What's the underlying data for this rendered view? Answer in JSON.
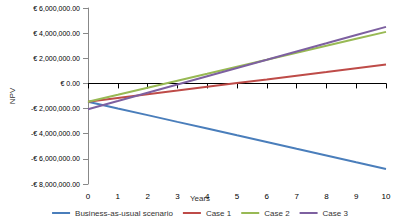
{
  "chart_data": {
    "type": "line",
    "x_label": "Years",
    "y_label": "NPV",
    "x": [
      0,
      1,
      2,
      3,
      4,
      5,
      6,
      7,
      8,
      9,
      10
    ],
    "series": [
      {
        "name": "Business-as-usual scenario",
        "color": "#4a7ebb",
        "values": [
          -1450000,
          -1990000,
          -2520000,
          -3060000,
          -3590000,
          -4130000,
          -4660000,
          -5200000,
          -5730000,
          -6270000,
          -6800000
        ]
      },
      {
        "name": "Case 1",
        "color": "#be4b48",
        "values": [
          -1450000,
          -1150000,
          -860000,
          -570000,
          -270000,
          30000,
          320000,
          620000,
          910000,
          1210000,
          1500000
        ]
      },
      {
        "name": "Case 2",
        "color": "#98b954",
        "values": [
          -1450000,
          -900000,
          -340000,
          220000,
          770000,
          1330000,
          1880000,
          2440000,
          2990000,
          3550000,
          4100000
        ]
      },
      {
        "name": "Case 3",
        "color": "#7d60a0",
        "values": [
          -2050000,
          -1400000,
          -740000,
          -90000,
          570000,
          1230000,
          1880000,
          2540000,
          3190000,
          3850000,
          4500000
        ]
      }
    ],
    "xlim": [
      0,
      10
    ],
    "xticks": [
      0,
      1,
      2,
      3,
      4,
      5,
      6,
      7,
      8,
      9,
      10
    ],
    "ylim": [
      -8000000,
      6000000
    ],
    "yticks": [
      {
        "value": -8000000,
        "label": "-€ 8,000,000.00"
      },
      {
        "value": -6000000,
        "label": "-€ 6,000,000.00"
      },
      {
        "value": -4000000,
        "label": "-€ 4,000,000.00"
      },
      {
        "value": -2000000,
        "label": "-€ 2,000,000.00"
      },
      {
        "value": 0,
        "label": "€ 0.00"
      },
      {
        "value": 2000000,
        "label": "€ 2,000,000.00"
      },
      {
        "value": 4000000,
        "label": "€ 4,000,000.00"
      },
      {
        "value": 6000000,
        "label": "€ 6,000,000.00"
      }
    ],
    "grid": false,
    "legend": "bottom"
  }
}
